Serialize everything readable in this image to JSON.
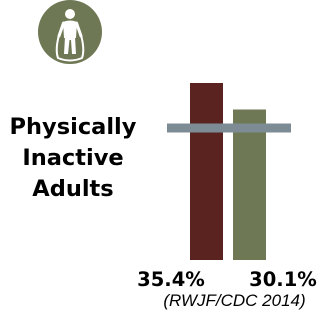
{
  "title_lines": [
    "Physically",
    "Inactive",
    "Adults"
  ],
  "icon": "jump-rope-person-icon",
  "colors": {
    "badge": "#6f7854",
    "series_1": "#5a2320",
    "series_2": "#6f7854",
    "reference_line": "#7d8c94"
  },
  "chart_data": {
    "type": "bar",
    "title": "Physically Inactive Adults",
    "categories": [
      "",
      ""
    ],
    "values": [
      35.4,
      30.1
    ],
    "value_labels": [
      "35.4%",
      "30.1%"
    ],
    "reference_value": 26.4,
    "ylim": [
      0,
      40
    ],
    "grid": false,
    "source": "(RWJF/CDC 2014)"
  }
}
